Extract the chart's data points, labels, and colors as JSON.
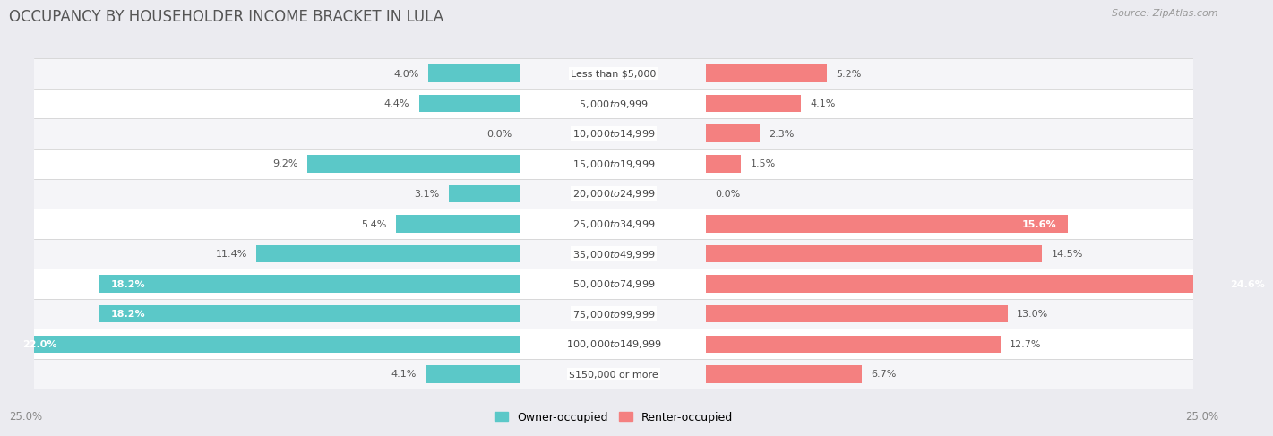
{
  "title": "OCCUPANCY BY HOUSEHOLDER INCOME BRACKET IN LULA",
  "source": "Source: ZipAtlas.com",
  "categories": [
    "Less than $5,000",
    "$5,000 to $9,999",
    "$10,000 to $14,999",
    "$15,000 to $19,999",
    "$20,000 to $24,999",
    "$25,000 to $34,999",
    "$35,000 to $49,999",
    "$50,000 to $74,999",
    "$75,000 to $99,999",
    "$100,000 to $149,999",
    "$150,000 or more"
  ],
  "owner_pct": [
    4.0,
    4.4,
    0.0,
    9.2,
    3.1,
    5.4,
    11.4,
    18.2,
    18.2,
    22.0,
    4.1
  ],
  "renter_pct": [
    5.2,
    4.1,
    2.3,
    1.5,
    0.0,
    15.6,
    14.5,
    24.6,
    13.0,
    12.7,
    6.7
  ],
  "owner_color": "#5BC8C8",
  "renter_color": "#F48080",
  "owner_label": "Owner-occupied",
  "renter_label": "Renter-occupied",
  "axis_limit": 25.0,
  "label_span": 8.0,
  "background_color": "#ebebf0",
  "row_colors": [
    "#f5f5f8",
    "#ffffff"
  ],
  "title_fontsize": 12,
  "bar_height": 0.58,
  "footnote_left": "25.0%",
  "footnote_right": "25.0%"
}
